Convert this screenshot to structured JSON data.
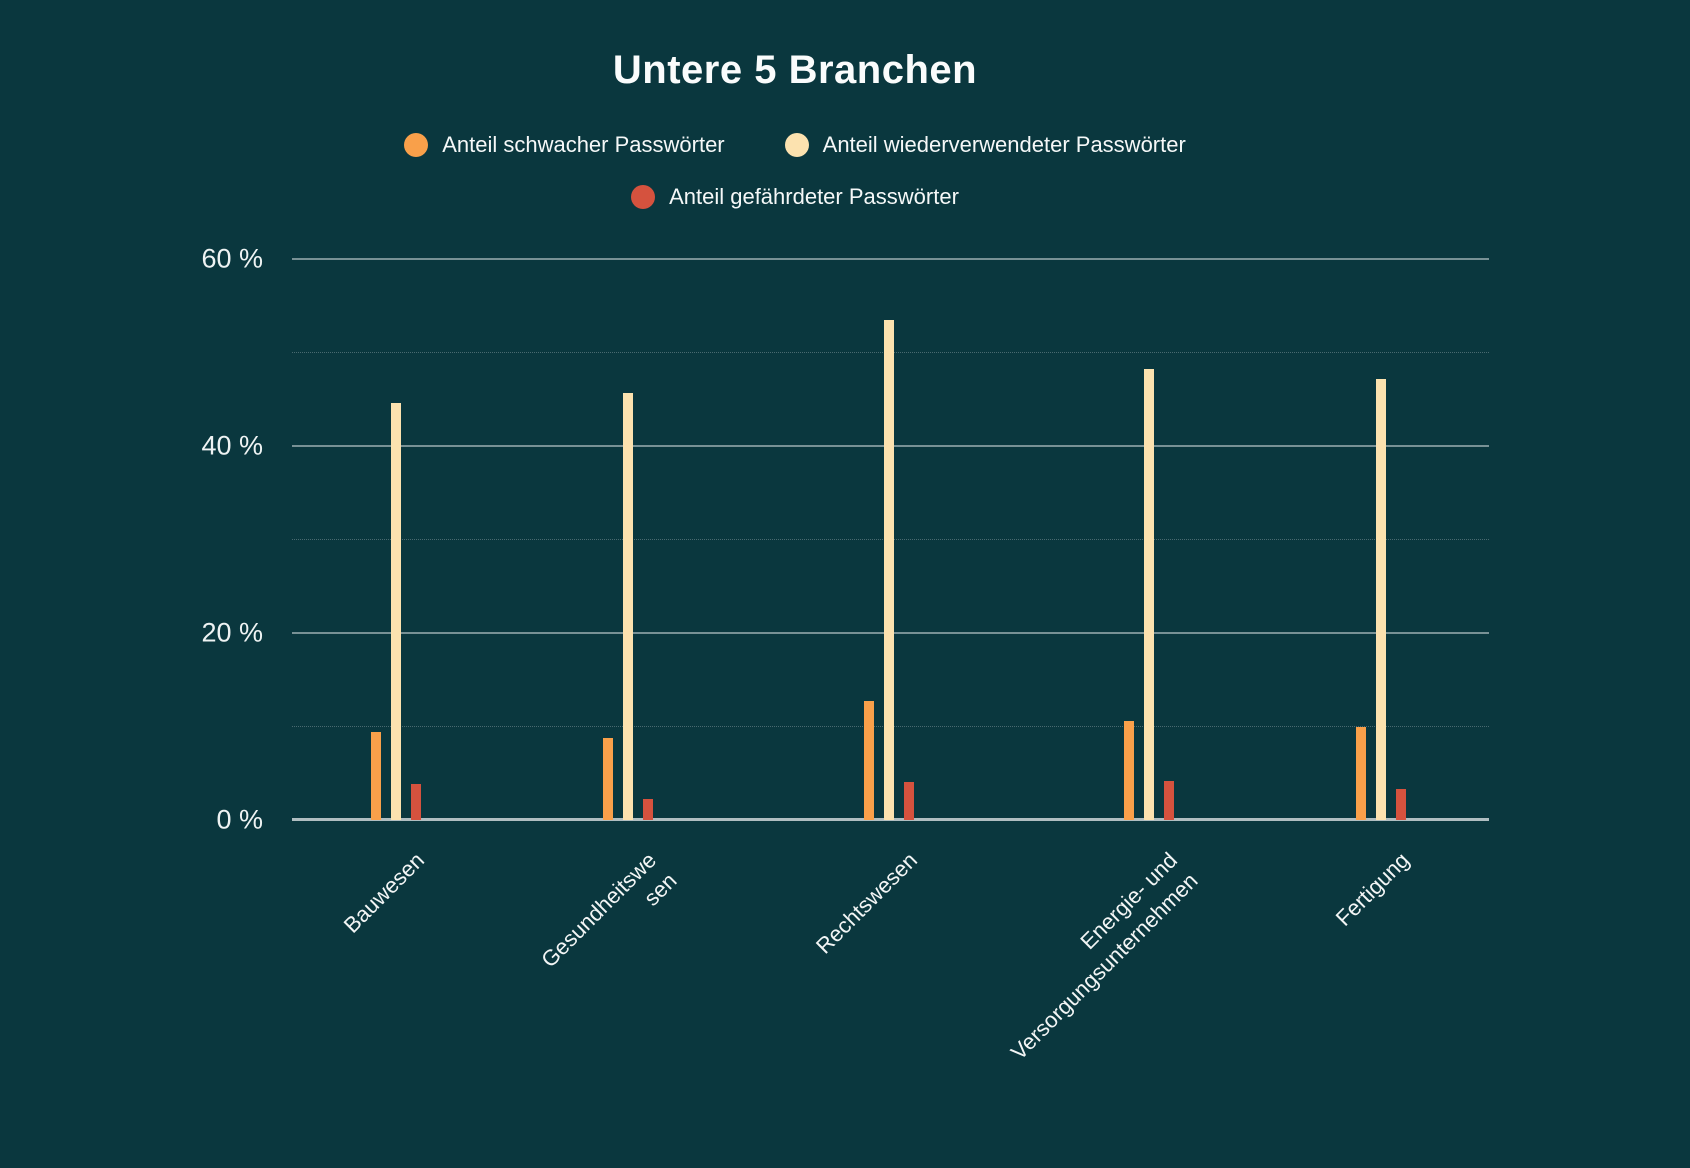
{
  "title": "Untere 5 Branchen",
  "colors": {
    "background": "#0a373e",
    "weak": "#f9a04a",
    "reused": "#fce2af",
    "exposed": "#d5523e",
    "text": "#fafcfc",
    "gridline_major": "rgba(255,255,255,0.45)",
    "gridline_minor": "rgba(255,255,255,0.26)",
    "axis_line": "rgba(255,255,255,0.68)"
  },
  "chart_data": {
    "type": "bar",
    "title": "Untere 5 Branchen",
    "categories": [
      "Bauwesen",
      "Gesundheitswesen",
      "Rechtswesen",
      "Energie- und Versorgungsunternehmen",
      "Fertigung"
    ],
    "category_display": [
      "Bauwesen",
      "Gesundheitswe\nsen",
      "Rechtswesen",
      "Energie- und\nVersorgungsunternehmen",
      "Fertigung"
    ],
    "series": [
      {
        "id": "weak",
        "name": "Anteil schwacher Passwörter",
        "color": "#f9a04a",
        "values": [
          9.4,
          8.8,
          12.7,
          10.6,
          9.9
        ]
      },
      {
        "id": "reused",
        "name": "Anteil wiederverwendeter Passwörter",
        "color": "#fce2af",
        "values": [
          44.6,
          45.7,
          53.5,
          48.2,
          47.2
        ]
      },
      {
        "id": "exposed",
        "name": "Anteil gefährdeter Passwörter",
        "color": "#d5523e",
        "values": [
          3.8,
          2.2,
          4.1,
          4.2,
          3.3
        ]
      }
    ],
    "xlabel": "",
    "ylabel": "",
    "ylim": [
      0,
      60
    ],
    "grid_step": 10,
    "y_major_ticks": [
      {
        "value": 0,
        "label": "0 %"
      },
      {
        "value": 20,
        "label": "20 %"
      },
      {
        "value": 40,
        "label": "40 %"
      },
      {
        "value": 60,
        "label": "60 %"
      }
    ],
    "grid": true,
    "legend_position": "top"
  }
}
